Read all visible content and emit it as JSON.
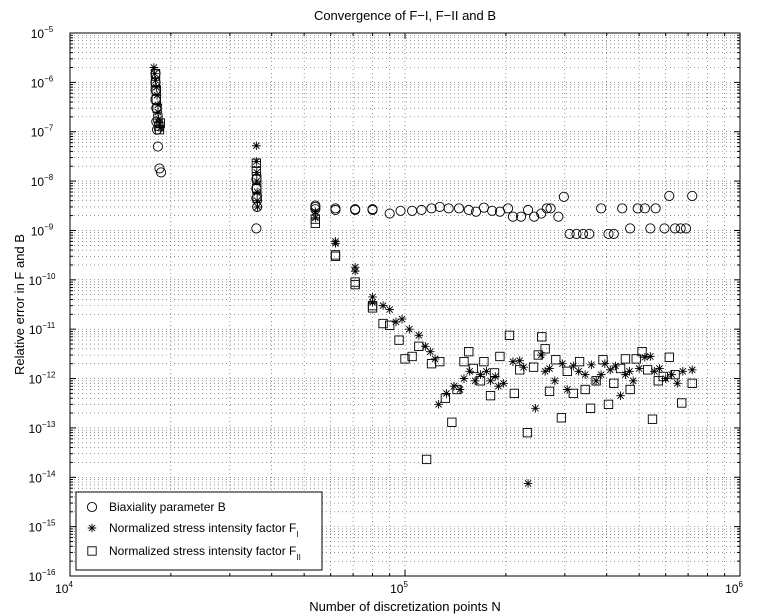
{
  "chart_data": {
    "type": "scatter",
    "title": "Convergence of F−I, F−II and B",
    "xlabel": "Number of discretization points N",
    "ylabel": "Relative error in F and B",
    "x_scale": "log",
    "y_scale": "log",
    "xlim": [
      10000,
      1000000
    ],
    "ylim": [
      1e-16,
      1e-05
    ],
    "grid": true,
    "legend_position": "bottom-left",
    "x_ticks": [
      {
        "value": 10000,
        "base": "10",
        "exp": "4"
      },
      {
        "value": 100000,
        "base": "10",
        "exp": "5"
      },
      {
        "value": 1000000,
        "base": "10",
        "exp": "6"
      }
    ],
    "y_ticks": [
      {
        "value": 1e-05,
        "base": "10",
        "exp": "−5"
      },
      {
        "value": 1e-06,
        "base": "10",
        "exp": "−6"
      },
      {
        "value": 1e-07,
        "base": "10",
        "exp": "−7"
      },
      {
        "value": 1e-08,
        "base": "10",
        "exp": "−8"
      },
      {
        "value": 1e-09,
        "base": "10",
        "exp": "−9"
      },
      {
        "value": 1e-10,
        "base": "10",
        "exp": "−10"
      },
      {
        "value": 1e-11,
        "base": "10",
        "exp": "−11"
      },
      {
        "value": 1e-12,
        "base": "10",
        "exp": "−12"
      },
      {
        "value": 1e-13,
        "base": "10",
        "exp": "−13"
      },
      {
        "value": 1e-14,
        "base": "10",
        "exp": "−14"
      },
      {
        "value": 1e-15,
        "base": "10",
        "exp": "−15"
      },
      {
        "value": 1e-16,
        "base": "10",
        "exp": "−16"
      }
    ],
    "series": [
      {
        "name": "Biaxiality parameter B",
        "sub": "",
        "marker": "circle",
        "points": [
          [
            18000,
            1.5e-06
          ],
          [
            18000,
            1e-06
          ],
          [
            18000,
            7e-07
          ],
          [
            18000,
            4.5e-07
          ],
          [
            18100,
            3e-07
          ],
          [
            18100,
            1.6e-07
          ],
          [
            18200,
            1.1e-07
          ],
          [
            18300,
            5e-08
          ],
          [
            18500,
            1.8e-08
          ],
          [
            18700,
            1.5e-08
          ],
          [
            36000,
            1.1e-08
          ],
          [
            36000,
            7e-09
          ],
          [
            36000,
            4.5e-09
          ],
          [
            36000,
            1.1e-09
          ],
          [
            36200,
            3e-09
          ],
          [
            54000,
            3.2e-09
          ],
          [
            54000,
            3e-09
          ],
          [
            54000,
            2.7e-09
          ],
          [
            62000,
            2.8e-09
          ],
          [
            62000,
            2.6e-09
          ],
          [
            71000,
            2.7e-09
          ],
          [
            71000,
            2.6e-09
          ],
          [
            80000,
            2.7e-09
          ],
          [
            80000,
            2.6e-09
          ],
          [
            90000,
            2.2e-09
          ],
          [
            97000,
            2.5e-09
          ],
          [
            105000,
            2.5e-09
          ],
          [
            112000,
            2.6e-09
          ],
          [
            120000,
            2.8e-09
          ],
          [
            127000,
            3e-09
          ],
          [
            135000,
            2.8e-09
          ],
          [
            145000,
            2.8e-09
          ],
          [
            155000,
            2.6e-09
          ],
          [
            163000,
            2.4e-09
          ],
          [
            172000,
            2.9e-09
          ],
          [
            182000,
            2.5e-09
          ],
          [
            192000,
            2.4e-09
          ],
          [
            203000,
            2.8e-09
          ],
          [
            210000,
            1.9e-09
          ],
          [
            222000,
            1.9e-09
          ],
          [
            233000,
            2.6e-09
          ],
          [
            243000,
            1.9e-09
          ],
          [
            255000,
            2.2e-09
          ],
          [
            265000,
            2.8e-09
          ],
          [
            272000,
            2.8e-09
          ],
          [
            287000,
            1.9e-09
          ],
          [
            298000,
            4.8e-09
          ],
          [
            310000,
            8.5e-10
          ],
          [
            325000,
            8.5e-10
          ],
          [
            340000,
            8.5e-10
          ],
          [
            355000,
            8.5e-10
          ],
          [
            385000,
            2.8e-09
          ],
          [
            405000,
            8.5e-10
          ],
          [
            420000,
            8.5e-10
          ],
          [
            445000,
            2.8e-09
          ],
          [
            470000,
            1.1e-09
          ],
          [
            495000,
            2.8e-09
          ],
          [
            520000,
            2.8e-09
          ],
          [
            540000,
            1.1e-09
          ],
          [
            560000,
            2.8e-09
          ],
          [
            595000,
            1.1e-09
          ],
          [
            615000,
            5e-09
          ],
          [
            640000,
            1.1e-09
          ],
          [
            665000,
            1.1e-09
          ],
          [
            690000,
            1.1e-09
          ],
          [
            720000,
            5e-09
          ]
        ]
      },
      {
        "name": "Normalized stress intensity factor F",
        "sub": "I",
        "marker": "asterisk",
        "points": [
          [
            17800,
            2e-06
          ],
          [
            17900,
            1.5e-06
          ],
          [
            18000,
            1.1e-06
          ],
          [
            18100,
            8e-07
          ],
          [
            18200,
            5.5e-07
          ],
          [
            18300,
            3.5e-07
          ],
          [
            18300,
            2.5e-07
          ],
          [
            18400,
            1.8e-07
          ],
          [
            18500,
            1.5e-07
          ],
          [
            18600,
            1.2e-07
          ],
          [
            36000,
            5.2e-08
          ],
          [
            36000,
            2.5e-08
          ],
          [
            36100,
            1.5e-08
          ],
          [
            36100,
            1e-08
          ],
          [
            36200,
            6e-09
          ],
          [
            36200,
            4e-09
          ],
          [
            36300,
            3e-09
          ],
          [
            54000,
            2.4e-09
          ],
          [
            54000,
            1.8e-09
          ],
          [
            62000,
            5.5e-10
          ],
          [
            62000,
            6e-10
          ],
          [
            71000,
            1.8e-10
          ],
          [
            71000,
            1.5e-10
          ],
          [
            80000,
            4.5e-11
          ],
          [
            80000,
            3.5e-11
          ],
          [
            86000,
            3e-11
          ],
          [
            90000,
            2.5e-11
          ],
          [
            94000,
            1.4e-11
          ],
          [
            98000,
            1.6e-11
          ],
          [
            103000,
            1e-11
          ],
          [
            110000,
            7.5e-12
          ],
          [
            115000,
            4.5e-12
          ],
          [
            119000,
            3.5e-12
          ],
          [
            123000,
            2.5e-12
          ],
          [
            126000,
            3e-13
          ],
          [
            133000,
            5e-13
          ],
          [
            140000,
            7e-13
          ],
          [
            146000,
            6e-13
          ],
          [
            150000,
            1e-12
          ],
          [
            156000,
            1.4e-12
          ],
          [
            162000,
            9e-13
          ],
          [
            168000,
            1.2e-12
          ],
          [
            175000,
            1.4e-12
          ],
          [
            180000,
            9e-13
          ],
          [
            186000,
            1.1e-12
          ],
          [
            190000,
            7e-13
          ],
          [
            197000,
            8e-13
          ],
          [
            210000,
            2.2e-12
          ],
          [
            220000,
            2.3e-12
          ],
          [
            226000,
            1.7e-12
          ],
          [
            233000,
            7.5e-15
          ],
          [
            245000,
            2.5e-13
          ],
          [
            255000,
            3e-12
          ],
          [
            262000,
            1.4e-12
          ],
          [
            270000,
            1.6e-12
          ],
          [
            280000,
            9e-13
          ],
          [
            295000,
            2e-12
          ],
          [
            305000,
            6e-13
          ],
          [
            318000,
            1.8e-12
          ],
          [
            330000,
            1.4e-12
          ],
          [
            345000,
            1.2e-12
          ],
          [
            360000,
            1.9e-12
          ],
          [
            372000,
            9e-13
          ],
          [
            385000,
            1.2e-12
          ],
          [
            395000,
            2e-12
          ],
          [
            410000,
            1.5e-12
          ],
          [
            425000,
            1.8e-12
          ],
          [
            440000,
            4.5e-13
          ],
          [
            455000,
            1.2e-12
          ],
          [
            468000,
            1.4e-12
          ],
          [
            480000,
            9e-13
          ],
          [
            500000,
            1.6e-12
          ],
          [
            520000,
            2.7e-12
          ],
          [
            540000,
            2.8e-12
          ],
          [
            555000,
            1.4e-12
          ],
          [
            575000,
            1.6e-12
          ],
          [
            600000,
            1e-12
          ],
          [
            625000,
            1.2e-12
          ],
          [
            650000,
            8e-13
          ],
          [
            675000,
            1.4e-12
          ],
          [
            720000,
            1.5e-12
          ]
        ]
      },
      {
        "name": "Normalized stress intensity factor F",
        "sub": "II",
        "marker": "square",
        "points": [
          [
            18000,
            1.5e-06
          ],
          [
            18000,
            1e-06
          ],
          [
            18100,
            7e-07
          ],
          [
            18100,
            4.5e-07
          ],
          [
            18200,
            3e-07
          ],
          [
            18300,
            1.9e-07
          ],
          [
            18400,
            1.3e-07
          ],
          [
            18500,
            1.1e-07
          ],
          [
            18600,
            1.5e-07
          ],
          [
            36000,
            2.3e-08
          ],
          [
            36000,
            1.6e-08
          ],
          [
            36100,
            1.1e-08
          ],
          [
            36100,
            7e-09
          ],
          [
            36200,
            4.5e-09
          ],
          [
            54000,
            1.7e-09
          ],
          [
            54000,
            1.4e-09
          ],
          [
            62000,
            3.2e-10
          ],
          [
            62000,
            3e-10
          ],
          [
            71000,
            9e-11
          ],
          [
            71000,
            8e-11
          ],
          [
            80000,
            3e-11
          ],
          [
            80000,
            2.7e-11
          ],
          [
            86000,
            1.3e-11
          ],
          [
            90000,
            1.2e-11
          ],
          [
            96000,
            6e-12
          ],
          [
            100000,
            2.5e-12
          ],
          [
            105000,
            2.8e-12
          ],
          [
            110000,
            4.5e-12
          ],
          [
            116000,
            2.3e-14
          ],
          [
            120000,
            2e-12
          ],
          [
            127000,
            2.2e-12
          ],
          [
            132000,
            4e-13
          ],
          [
            138000,
            1.3e-13
          ],
          [
            143000,
            6e-13
          ],
          [
            150000,
            2.2e-12
          ],
          [
            155000,
            3.5e-12
          ],
          [
            160000,
            1.6e-12
          ],
          [
            168000,
            9e-13
          ],
          [
            172000,
            2.2e-12
          ],
          [
            180000,
            4.5e-13
          ],
          [
            185000,
            1.3e-12
          ],
          [
            192000,
            2.8e-12
          ],
          [
            205000,
            7.5e-12
          ],
          [
            212000,
            5e-13
          ],
          [
            220000,
            1.5e-12
          ],
          [
            232000,
            8e-14
          ],
          [
            242000,
            1.7e-12
          ],
          [
            250000,
            3e-12
          ],
          [
            256000,
            7e-12
          ],
          [
            262000,
            4e-12
          ],
          [
            270000,
            5.5e-13
          ],
          [
            282000,
            2.4e-12
          ],
          [
            293000,
            1.6e-13
          ],
          [
            305000,
            1.4e-12
          ],
          [
            318000,
            5e-13
          ],
          [
            332000,
            2.2e-12
          ],
          [
            345000,
            6e-13
          ],
          [
            358000,
            2.5e-13
          ],
          [
            372000,
            9e-13
          ],
          [
            390000,
            2.4e-12
          ],
          [
            405000,
            3e-13
          ],
          [
            420000,
            8e-13
          ],
          [
            440000,
            1.6e-12
          ],
          [
            455000,
            2.5e-12
          ],
          [
            470000,
            6e-13
          ],
          [
            490000,
            2.5e-12
          ],
          [
            510000,
            3.5e-12
          ],
          [
            530000,
            1.5e-12
          ],
          [
            548000,
            1.5e-13
          ],
          [
            570000,
            9e-13
          ],
          [
            590000,
            1.1e-12
          ],
          [
            615000,
            2.7e-12
          ],
          [
            640000,
            1.2e-12
          ],
          [
            670000,
            3.2e-13
          ],
          [
            720000,
            8e-13
          ]
        ]
      }
    ]
  }
}
